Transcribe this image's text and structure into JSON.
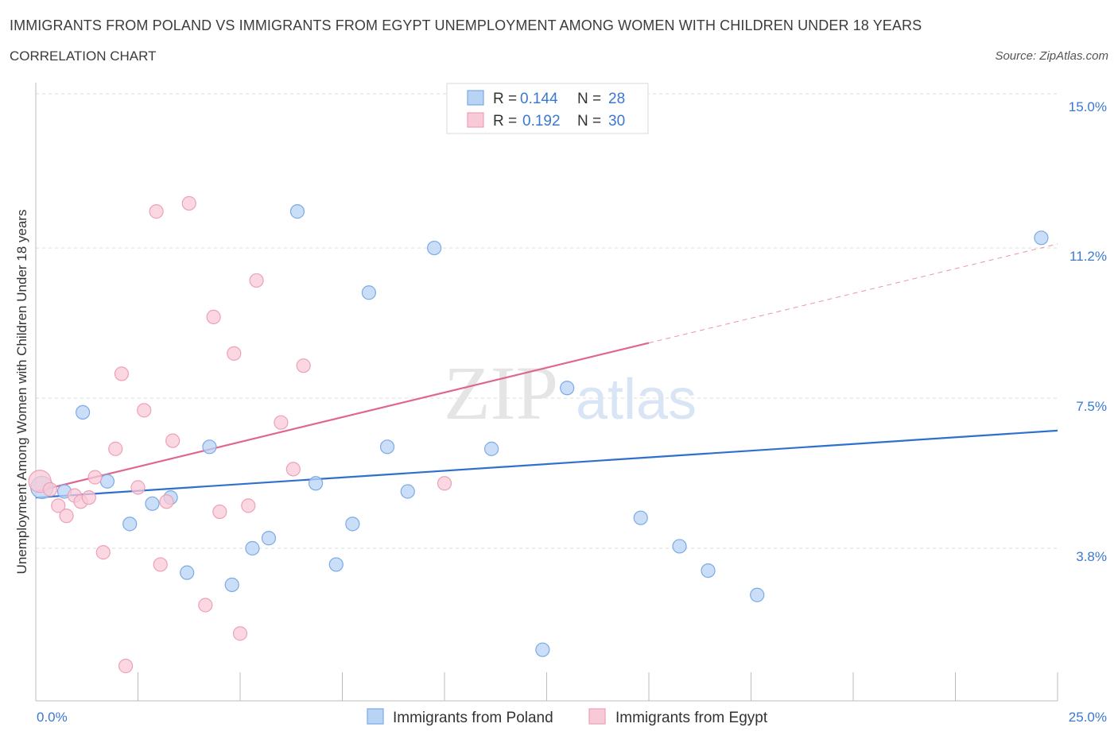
{
  "title": "IMMIGRANTS FROM POLAND VS IMMIGRANTS FROM EGYPT UNEMPLOYMENT AMONG WOMEN WITH CHILDREN UNDER 18 YEARS",
  "subtitle": "CORRELATION CHART",
  "source": "Source: ZipAtlas.com",
  "watermark": {
    "zip": "ZIP",
    "atlas": "atlas"
  },
  "colors": {
    "poland_fill": "#b9d3f5",
    "poland_stroke": "#7aaae6",
    "poland_line": "#2f6fcf",
    "egypt_fill": "#f8c9d7",
    "egypt_stroke": "#eea0b8",
    "egypt_line": "#e06690",
    "tick_text": "#3b78d0",
    "grid": "#dddddd"
  },
  "legend": {
    "r_label": "R =",
    "n_label": "N =",
    "rows": [
      {
        "r": "0.144",
        "n": "28",
        "series": "poland"
      },
      {
        "r": "0.192",
        "n": "30",
        "series": "egypt"
      }
    ]
  },
  "chart_data": {
    "type": "scatter",
    "xlabel": "",
    "ylabel": "Unemployment Among Women with Children Under 18 years",
    "xlim": [
      0,
      25
    ],
    "ylim": [
      0,
      15
    ],
    "x_tick_labels": [
      "0.0%",
      "25.0%"
    ],
    "y_ticks": [
      3.8,
      7.5,
      11.2,
      15.0
    ],
    "y_tick_labels": [
      "3.8%",
      "7.5%",
      "11.2%",
      "15.0%"
    ],
    "grid": true,
    "legend_position": "top-center",
    "series": [
      {
        "name": "Immigrants from Poland",
        "color": "#b9d3f5",
        "trend": {
          "x": [
            0,
            25
          ],
          "y": [
            5.05,
            6.7
          ],
          "dashed_from": null
        },
        "points": [
          [
            0.15,
            5.3
          ],
          [
            0.7,
            5.2
          ],
          [
            1.15,
            7.15
          ],
          [
            1.75,
            5.45
          ],
          [
            2.3,
            4.4
          ],
          [
            2.85,
            4.9
          ],
          [
            3.3,
            5.05
          ],
          [
            3.7,
            3.2
          ],
          [
            4.25,
            6.3
          ],
          [
            4.8,
            2.9
          ],
          [
            5.3,
            3.8
          ],
          [
            5.7,
            4.05
          ],
          [
            6.4,
            12.1
          ],
          [
            6.85,
            5.4
          ],
          [
            7.35,
            3.4
          ],
          [
            7.75,
            4.4
          ],
          [
            8.15,
            10.1
          ],
          [
            8.6,
            6.3
          ],
          [
            9.1,
            5.2
          ],
          [
            9.75,
            11.2
          ],
          [
            11.15,
            6.25
          ],
          [
            12.4,
            1.3
          ],
          [
            13.0,
            7.75
          ],
          [
            14.8,
            4.55
          ],
          [
            15.75,
            3.85
          ],
          [
            16.45,
            3.25
          ],
          [
            17.65,
            2.65
          ],
          [
            24.6,
            11.45
          ]
        ]
      },
      {
        "name": "Immigrants from Egypt",
        "color": "#f8c9d7",
        "trend": {
          "x": [
            0,
            25
          ],
          "y": [
            5.2,
            11.3
          ],
          "dashed_from": 15
        },
        "points": [
          [
            0.1,
            5.45
          ],
          [
            0.35,
            5.25
          ],
          [
            0.55,
            4.85
          ],
          [
            0.75,
            4.6
          ],
          [
            0.95,
            5.1
          ],
          [
            1.1,
            4.95
          ],
          [
            1.3,
            5.05
          ],
          [
            1.45,
            5.55
          ],
          [
            1.65,
            3.7
          ],
          [
            1.95,
            6.25
          ],
          [
            2.1,
            8.1
          ],
          [
            2.2,
            0.9
          ],
          [
            2.5,
            5.3
          ],
          [
            2.65,
            7.2
          ],
          [
            2.95,
            12.1
          ],
          [
            3.05,
            3.4
          ],
          [
            3.2,
            4.95
          ],
          [
            3.35,
            6.45
          ],
          [
            3.75,
            12.3
          ],
          [
            4.15,
            2.4
          ],
          [
            4.35,
            9.5
          ],
          [
            4.5,
            4.7
          ],
          [
            4.85,
            8.6
          ],
          [
            5.0,
            1.7
          ],
          [
            5.2,
            4.85
          ],
          [
            5.4,
            10.4
          ],
          [
            6.0,
            6.9
          ],
          [
            6.3,
            5.75
          ],
          [
            6.55,
            8.3
          ],
          [
            10.0,
            5.4
          ]
        ]
      }
    ]
  }
}
